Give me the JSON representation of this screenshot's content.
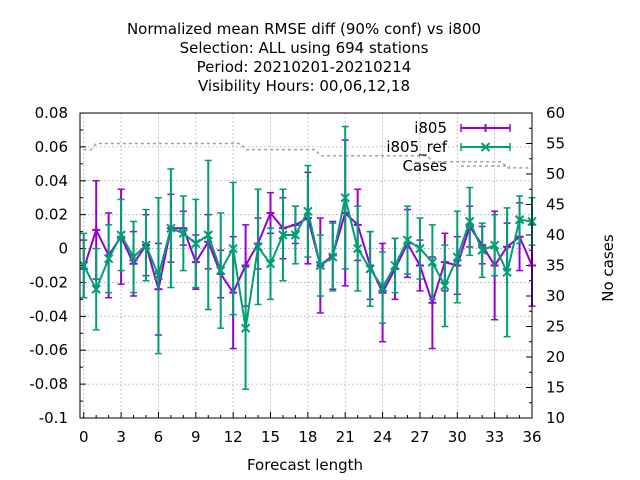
{
  "chart_data": {
    "type": "line",
    "title_lines": [
      "Normalized mean RMSE diff (90% conf) vs i800",
      "Selection: ALL using   694 stations",
      "Period: 20210201-20210214",
      "Visibility   Hours:  00,06,12,18"
    ],
    "xlabel": "Forecast length",
    "ylabel_right": "No cases",
    "xlim": [
      -0.3,
      36
    ],
    "ylim": [
      -0.1,
      0.08
    ],
    "y2lim": [
      10,
      60
    ],
    "x_ticks": [
      0,
      3,
      6,
      9,
      12,
      15,
      18,
      21,
      24,
      27,
      30,
      33,
      36
    ],
    "y_ticks": [
      -0.1,
      -0.08,
      -0.06,
      -0.04,
      -0.02,
      0,
      0.02,
      0.04,
      0.06,
      0.08
    ],
    "y_tick_labels": [
      "-0.1",
      "-0.08",
      "-0.06",
      "-0.04",
      "-0.02",
      "0",
      "0.02",
      "0.04",
      "0.06",
      "0.08"
    ],
    "y2_ticks": [
      10,
      15,
      20,
      25,
      30,
      35,
      40,
      45,
      50,
      55,
      60
    ],
    "grid": true,
    "legend_position": "top-right",
    "colors": {
      "i805": "#9400d3",
      "i805ref": "#009e73",
      "cases": "#a0a0a0"
    },
    "x": [
      0,
      1,
      2,
      3,
      4,
      5,
      6,
      7,
      8,
      9,
      10,
      11,
      12,
      13,
      14,
      15,
      16,
      17,
      18,
      19,
      20,
      21,
      22,
      23,
      24,
      25,
      26,
      27,
      28,
      29,
      30,
      31,
      32,
      33,
      34,
      35,
      36
    ],
    "series": [
      {
        "name": "i805",
        "axis": "left",
        "values": [
          -0.012,
          0.011,
          -0.004,
          0.007,
          -0.009,
          0.002,
          -0.024,
          0.012,
          0.012,
          -0.008,
          0.004,
          -0.015,
          -0.026,
          -0.01,
          0.003,
          0.021,
          0.012,
          0.014,
          0.018,
          -0.01,
          -0.004,
          0.021,
          0.014,
          -0.01,
          -0.026,
          -0.012,
          0.003,
          -0.01,
          -0.032,
          -0.008,
          -0.01,
          0.013,
          0.002,
          -0.01,
          0.001,
          0.007,
          -0.01
        ],
        "err": [
          0.017,
          0.029,
          0.025,
          0.028,
          0.019,
          0.018,
          0.027,
          0.02,
          0.01,
          0.016,
          0.016,
          0.014,
          0.033,
          0.024,
          0.015,
          0.012,
          0.018,
          0.011,
          0.027,
          0.028,
          0.02,
          0.043,
          0.021,
          0.02,
          0.029,
          0.018,
          0.02,
          0.015,
          0.027,
          0.017,
          0.017,
          0.012,
          0.011,
          0.032,
          0.014,
          0.02,
          0.024
        ]
      },
      {
        "name": "i805ref",
        "axis": "left",
        "values": [
          -0.01,
          -0.024,
          -0.006,
          0.008,
          -0.005,
          0.002,
          -0.016,
          0.012,
          0.009,
          0.003,
          0.008,
          -0.013,
          0.0,
          -0.047,
          0.001,
          -0.009,
          0.008,
          0.008,
          0.022,
          -0.01,
          -0.005,
          0.03,
          0.0,
          -0.012,
          -0.023,
          -0.01,
          0.005,
          0.0,
          -0.008,
          -0.022,
          -0.005,
          0.016,
          -0.001,
          0.002,
          -0.014,
          0.017,
          0.016
        ],
        "err": [
          0.019,
          0.024,
          0.02,
          0.021,
          0.021,
          0.021,
          0.046,
          0.035,
          0.022,
          0.026,
          0.044,
          0.034,
          0.039,
          0.036,
          0.034,
          0.021,
          0.027,
          0.017,
          0.027,
          0.018,
          0.02,
          0.042,
          0.025,
          0.022,
          0.021,
          0.016,
          0.02,
          0.018,
          0.022,
          0.024,
          0.027,
          0.02,
          0.016,
          0.018,
          0.038,
          0.014,
          0.014
        ]
      },
      {
        "name": "Cases",
        "axis": "right",
        "values": [
          54,
          55,
          55,
          55,
          55,
          55,
          55,
          55,
          55,
          55,
          55,
          55,
          55,
          54,
          54,
          54,
          54,
          54,
          54,
          53,
          53,
          53,
          53,
          53,
          53,
          53,
          53,
          53,
          52,
          52,
          52,
          52,
          52,
          52,
          51,
          51,
          51
        ]
      }
    ],
    "legend": [
      "i805",
      "i805_ref",
      "Cases"
    ]
  }
}
